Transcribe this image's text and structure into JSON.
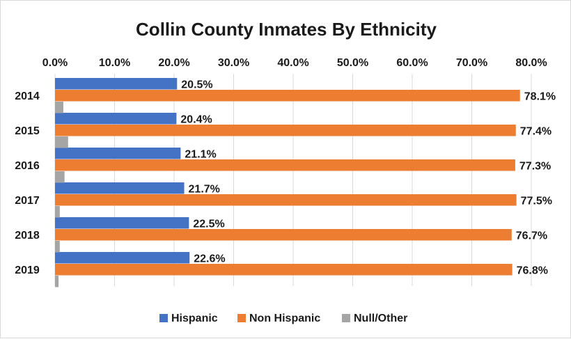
{
  "chart_data": {
    "type": "bar",
    "orientation": "horizontal",
    "title": "Collin County Inmates By Ethnicity",
    "categories": [
      "2014",
      "2015",
      "2016",
      "2017",
      "2018",
      "2019"
    ],
    "series": [
      {
        "name": "Hispanic",
        "color": "#4472c4",
        "values": [
          20.5,
          20.4,
          21.1,
          21.7,
          22.5,
          22.6
        ],
        "labels": [
          "20.5%",
          "20.4%",
          "21.1%",
          "21.7%",
          "22.5%",
          "22.6%"
        ]
      },
      {
        "name": "Non Hispanic",
        "color": "#ed7d31",
        "values": [
          78.1,
          77.4,
          77.3,
          77.5,
          76.7,
          76.8
        ],
        "labels": [
          "78.1%",
          "77.4%",
          "77.3%",
          "77.5%",
          "76.7%",
          "76.8%"
        ]
      },
      {
        "name": "Null/Other",
        "color": "#a5a5a5",
        "values": [
          1.4,
          2.2,
          1.6,
          0.8,
          0.8,
          0.6
        ],
        "labels": null
      }
    ],
    "xlim": [
      0,
      80
    ],
    "ticks": [
      "0.0%",
      "10.0%",
      "20.0%",
      "30.0%",
      "40.0%",
      "50.0%",
      "60.0%",
      "70.0%",
      "80.0%"
    ],
    "tick_position": "top",
    "grid": true,
    "legend_position": "bottom"
  }
}
